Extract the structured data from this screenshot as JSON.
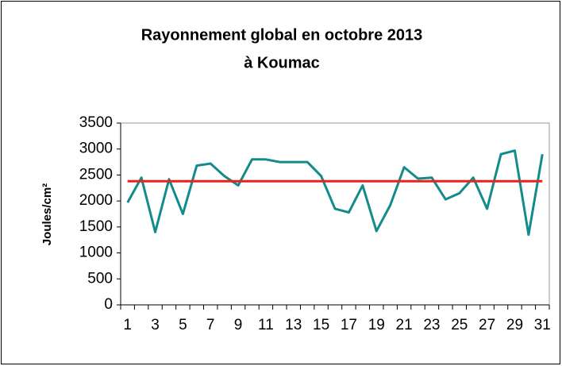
{
  "chart_data": {
    "type": "line",
    "title": [
      "Rayonnement global en octobre 2013",
      "à Koumac"
    ],
    "y_label": "Joules/cm²",
    "categories": [
      1,
      null,
      3,
      null,
      5,
      null,
      7,
      null,
      9,
      null,
      11,
      null,
      13,
      null,
      15,
      null,
      17,
      null,
      19,
      null,
      21,
      null,
      23,
      null,
      25,
      null,
      27,
      null,
      29,
      null,
      31
    ],
    "series": [
      {
        "color": "#138b8b",
        "values": [
          1970,
          2450,
          1400,
          2420,
          1750,
          2680,
          2720,
          2480,
          2300,
          2800,
          2800,
          2750,
          2750,
          2750,
          2480,
          1850,
          1780,
          2300,
          1420,
          1920,
          2650,
          2430,
          2450,
          2030,
          2150,
          2450,
          1850,
          2900,
          2970,
          1350,
          2900
        ]
      },
      {
        "color": "#e8231e",
        "values": [
          2380,
          2380,
          2380,
          2380,
          2380,
          2380,
          2380,
          2380,
          2380,
          2380,
          2380,
          2380,
          2380,
          2380,
          2380,
          2380,
          2380,
          2380,
          2380,
          2380,
          2380,
          2380,
          2380,
          2380,
          2380,
          2380,
          2380,
          2380,
          2380,
          2380,
          2380
        ]
      }
    ],
    "ylim": [
      0,
      3500
    ],
    "yticks": [
      0,
      500,
      1000,
      1500,
      2000,
      2500,
      3000,
      3500
    ],
    "grid": false
  }
}
